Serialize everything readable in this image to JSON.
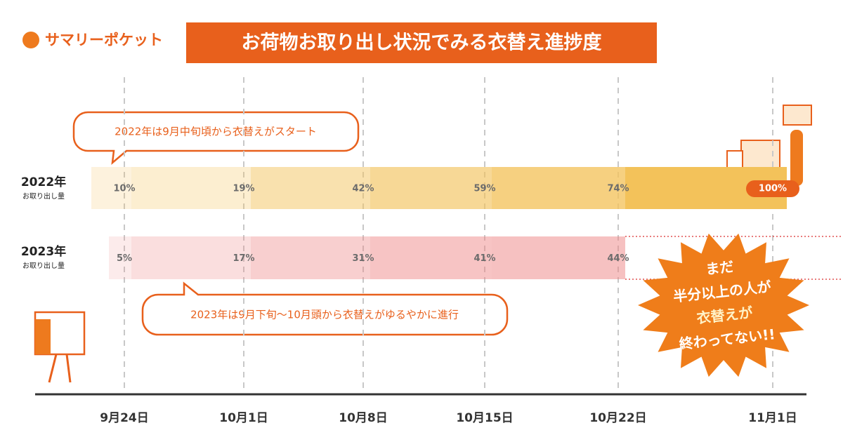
{
  "brand": "サマリーポケット",
  "chart_data": {
    "type": "progress",
    "title": "お荷物お取り出し状況でみる衣替え進捗度",
    "categories": [
      "9月24日",
      "10月1日",
      "10月8日",
      "10月15日",
      "10月22日",
      "11月1日"
    ],
    "ylim": [
      0,
      100
    ],
    "series": [
      {
        "name": "2022年",
        "color": "#f3c25a",
        "values": [
          10,
          19,
          42,
          59,
          74,
          100
        ],
        "value_labels": [
          "10%",
          "19%",
          "42%",
          "59%",
          "74%",
          "100%"
        ]
      },
      {
        "name": "2023年",
        "color": "#ee8585",
        "values": [
          5,
          17,
          31,
          41,
          44,
          null
        ],
        "value_labels": [
          "5%",
          "17%",
          "31%",
          "41%",
          "44%",
          null
        ]
      }
    ],
    "series_sublabel": "お取り出し量",
    "annotations": [
      "2022年は9月中旬頃から衣替えがスタート",
      "2023年は9月下旬〜10月頭から衣替えがゆるやかに進行"
    ],
    "burst": [
      "まだ",
      "半分以上の人が",
      "衣替えが",
      "終わってない!!"
    ]
  }
}
